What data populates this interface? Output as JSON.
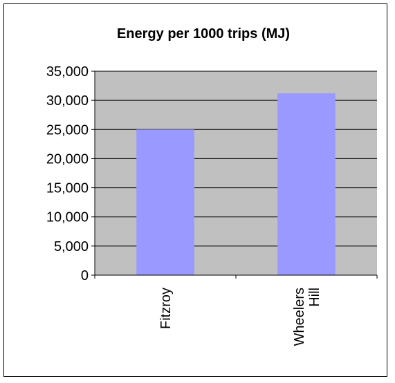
{
  "chart_data": {
    "type": "bar",
    "title": "Energy per 1000 trips (MJ)",
    "xlabel": "",
    "ylabel": "",
    "categories": [
      "Fitzroy",
      "Wheelers Hill"
    ],
    "category_lines": [
      [
        "Fitzroy"
      ],
      [
        "Wheelers",
        "Hill"
      ]
    ],
    "values": [
      25000,
      31200
    ],
    "ylim": [
      0,
      35000
    ],
    "yticks": [
      0,
      5000,
      10000,
      15000,
      20000,
      25000,
      30000,
      35000
    ],
    "ytick_labels": [
      "0",
      "5,000",
      "10,000",
      "15,000",
      "20,000",
      "25,000",
      "30,000",
      "35,000"
    ],
    "grid": true,
    "legend": "none",
    "colors": {
      "plot_background": "#c0c0c0",
      "bar": "#9999ff",
      "gridline": "#000000",
      "axis": "#000000",
      "text": "#000000"
    }
  }
}
